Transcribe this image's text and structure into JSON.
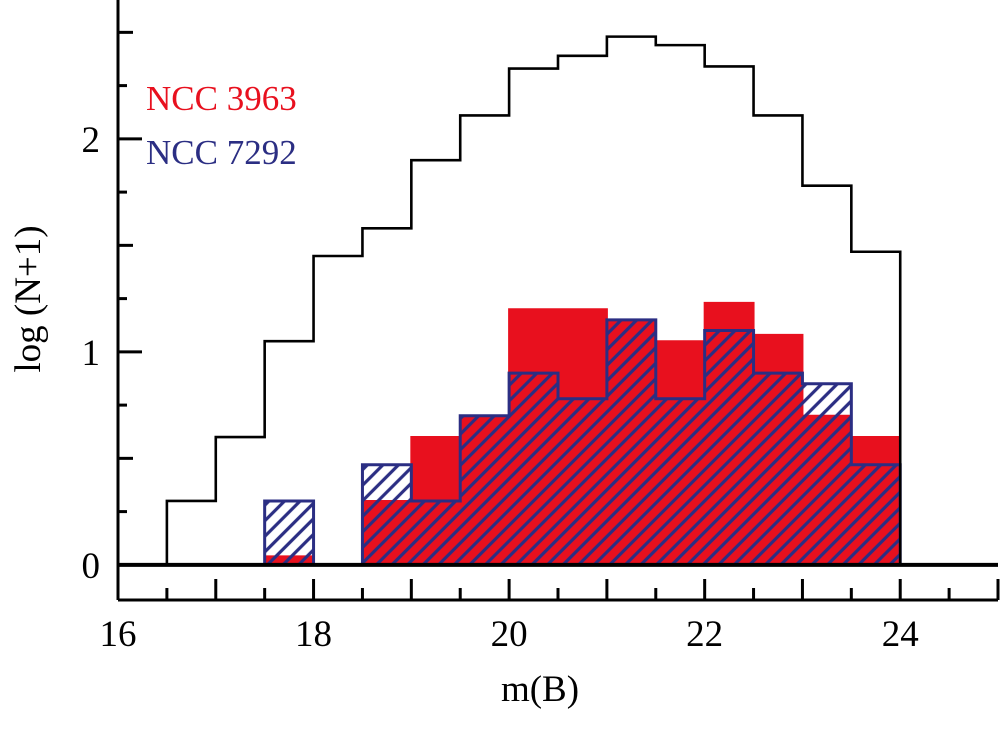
{
  "page": {
    "background": "#ffffff"
  },
  "colors": {
    "red": "#e8101e",
    "blue": "#2b2e83",
    "axis": "#000000"
  },
  "legend": {
    "position": "top-left",
    "items": [
      {
        "label": "NCC 3963",
        "color": "#e8101e",
        "style": "filled"
      },
      {
        "label": "NCC 7292",
        "color": "#2b2e83",
        "style": "hatched"
      }
    ]
  },
  "chart_data": {
    "type": "bar",
    "subtype": "step-histogram",
    "title": "",
    "xlabel": "m(B)",
    "ylabel": "log (N+1)",
    "xlim": [
      16,
      25
    ],
    "ylim": [
      -0.165,
      2.65
    ],
    "bin_width": 0.5,
    "x_labeled_ticks": [
      16,
      18,
      20,
      22,
      24
    ],
    "x_minor_tick_step": 0.5,
    "y_labeled_ticks": [
      0,
      1,
      2
    ],
    "y_minor_tick_step": 0.25,
    "grid": false,
    "series": [
      {
        "name": "all-sources-outline",
        "label": "",
        "style": "open",
        "color": "#000000",
        "bin_start": 16.5,
        "values": [
          0.3,
          0.6,
          1.05,
          1.45,
          1.58,
          1.9,
          2.11,
          2.33,
          2.39,
          2.48,
          2.44,
          2.34,
          2.11,
          1.78,
          1.47
        ]
      },
      {
        "name": "NCC 3963",
        "label": "NCC 3963",
        "style": "filled",
        "color": "#e8101e",
        "bin_start": 17.5,
        "values": [
          0.04,
          0,
          0.3,
          0.6,
          0.7,
          1.2,
          1.2,
          1.15,
          1.05,
          1.23,
          1.08,
          0.7,
          0.6
        ]
      },
      {
        "name": "NCC 7292",
        "label": "NCC 7292",
        "style": "hatched",
        "color": "#2b2e83",
        "bin_start": 17.5,
        "values": [
          0.3,
          0,
          0.47,
          0.3,
          0.7,
          0.9,
          0.78,
          1.15,
          0.78,
          1.1,
          0.9,
          0.85,
          0.47
        ]
      }
    ]
  }
}
